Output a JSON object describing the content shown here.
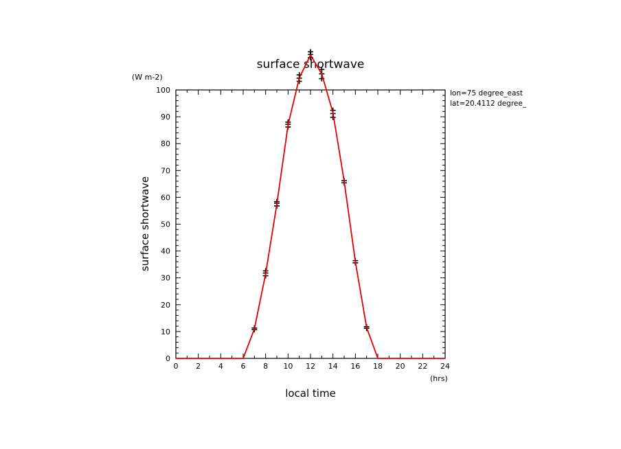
{
  "chart_data": {
    "type": "line",
    "title": "surface shortwave",
    "xlabel": "local time",
    "ylabel": "surface shortwave",
    "x_unit": "(hrs)",
    "y_unit": "(W m-2)",
    "annotations": [
      "lon=75 degree_east",
      "lat=20.4112 degree_"
    ],
    "xlim": [
      0,
      24
    ],
    "ylim": [
      0,
      100
    ],
    "x_ticks": [
      "0",
      "2",
      "4",
      "6",
      "8",
      "10",
      "12",
      "14",
      "16",
      "18",
      "20",
      "22",
      "24"
    ],
    "y_ticks": [
      "0",
      "10",
      "20",
      "30",
      "40",
      "50",
      "60",
      "70",
      "80",
      "90",
      "100"
    ],
    "grid": false,
    "line_color": "#e00000",
    "marker_color": "#000000",
    "series": [
      {
        "x": [
          0,
          1,
          2,
          3,
          4,
          5,
          6,
          7,
          8,
          9,
          10,
          11,
          12,
          13,
          14,
          15,
          16,
          17,
          18,
          19,
          20,
          21,
          22,
          23,
          24
        ],
        "y": [
          0,
          0,
          0,
          0,
          0,
          0,
          0,
          11,
          31.5,
          57.5,
          87,
          104.5,
          113,
          106,
          91.5,
          66,
          36,
          11.5,
          0,
          0,
          0,
          0,
          0,
          0,
          0
        ]
      }
    ],
    "markers": [
      {
        "x": 7,
        "y": [
          10.7,
          11.3
        ]
      },
      {
        "x": 8,
        "y": [
          30.8,
          31.8,
          32.6
        ]
      },
      {
        "x": 9,
        "y": [
          56.8,
          57.8,
          58.4
        ]
      },
      {
        "x": 10,
        "y": [
          86.2,
          87.2,
          88.0
        ]
      },
      {
        "x": 11,
        "y": [
          103.2,
          104.4,
          105.6
        ]
      },
      {
        "x": 12,
        "y": [
          112.0,
          113.2,
          114.2
        ]
      },
      {
        "x": 13,
        "y": [
          104.2,
          106.0,
          107.6
        ]
      },
      {
        "x": 14,
        "y": [
          89.8,
          91.2,
          92.4
        ]
      },
      {
        "x": 15,
        "y": [
          65.4,
          66.2
        ]
      },
      {
        "x": 16,
        "y": [
          35.6,
          36.4
        ]
      },
      {
        "x": 17,
        "y": [
          11.2,
          11.8
        ]
      }
    ]
  }
}
